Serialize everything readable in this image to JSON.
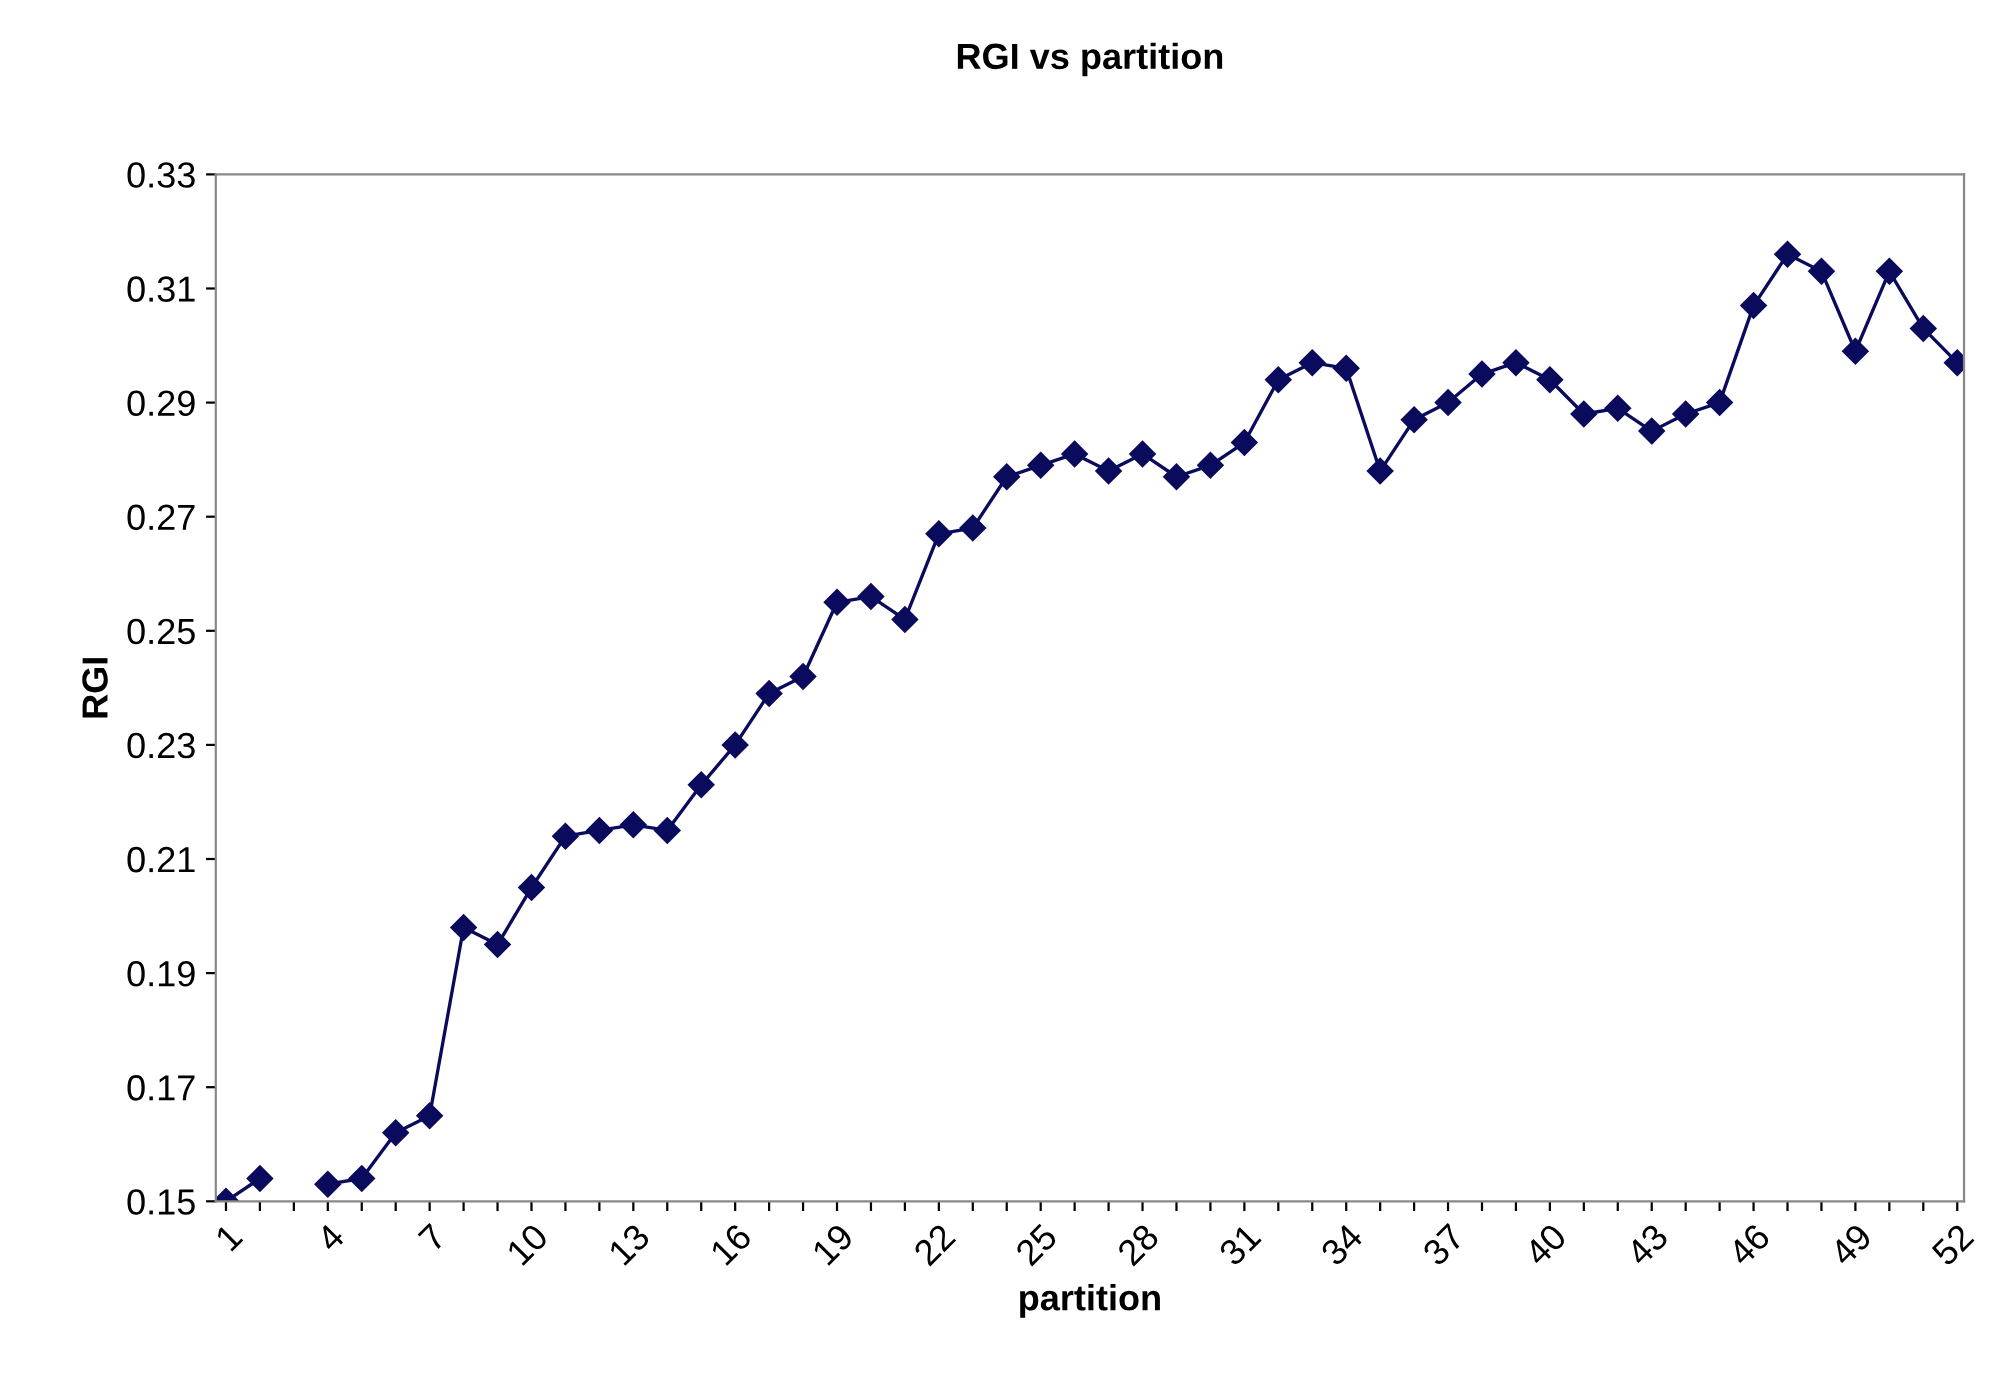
{
  "chart_data": {
    "type": "line",
    "title": "RGI vs partition",
    "xlabel": "partition",
    "ylabel": "RGI",
    "categories": [
      "1",
      null,
      null,
      "4",
      null,
      null,
      "7",
      null,
      null,
      "10",
      null,
      null,
      "13",
      null,
      null,
      "16",
      null,
      null,
      "19",
      null,
      null,
      "22",
      null,
      null,
      "25",
      null,
      null,
      "28",
      null,
      null,
      "31",
      null,
      null,
      "34",
      null,
      null,
      "37",
      null,
      null,
      "40",
      null,
      null,
      "43",
      null,
      null,
      "46",
      null,
      null,
      "49",
      null,
      null,
      "52"
    ],
    "series": [
      {
        "color": "#0b0b5e",
        "values": [
          0.15,
          0.154,
          null,
          0.153,
          0.154,
          0.162,
          0.165,
          0.198,
          0.195,
          0.205,
          0.214,
          0.215,
          0.216,
          0.215,
          0.223,
          0.23,
          0.239,
          0.242,
          0.255,
          0.256,
          0.252,
          0.267,
          0.268,
          0.277,
          0.279,
          0.281,
          0.278,
          0.281,
          0.277,
          0.279,
          0.283,
          0.294,
          0.297,
          0.296,
          0.278,
          0.287,
          0.29,
          0.295,
          0.297,
          0.294,
          0.288,
          0.289,
          0.285,
          0.288,
          0.29,
          0.307,
          0.316,
          0.313,
          0.299,
          0.313,
          0.303,
          0.297
        ]
      }
    ],
    "ylim": [
      0.15,
      0.33
    ],
    "yticks": [
      0.15,
      0.17,
      0.19,
      0.21,
      0.23,
      0.25,
      0.27,
      0.29,
      0.31,
      0.33
    ],
    "marker": "diamond",
    "line_style": "solid",
    "grid": false,
    "legend": false
  }
}
